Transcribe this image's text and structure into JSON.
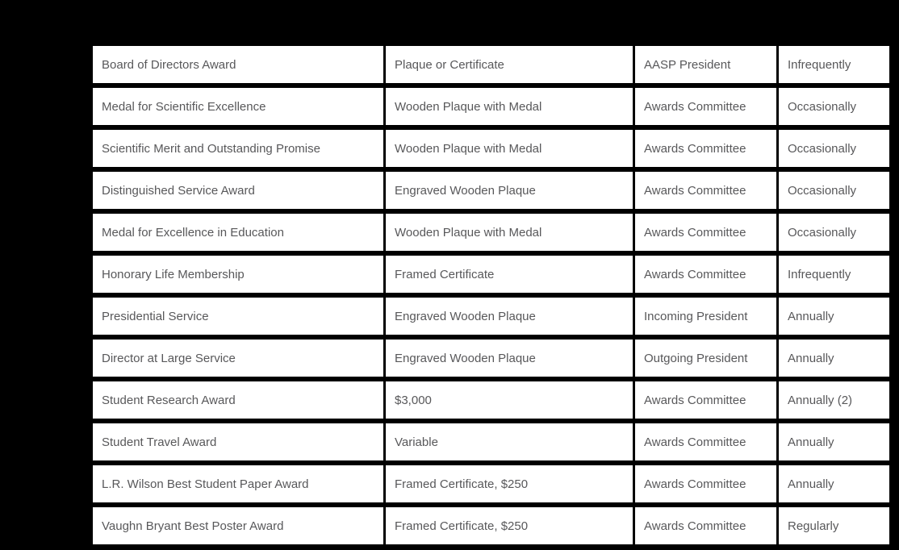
{
  "page": {
    "background_color": "#000000"
  },
  "table": {
    "description": "awards-table",
    "cell_background_color": "#ffffff",
    "text_color": "#58585a",
    "border_color": "#000000",
    "rows": [
      [
        "Board of Directors Award",
        "Plaque or Certificate",
        "AASP President",
        "Infrequently"
      ],
      [
        "Medal for Scientific Excellence",
        "Wooden Plaque with Medal",
        "Awards Committee",
        "Occasionally"
      ],
      [
        "Scientific Merit and Outstanding Promise",
        "Wooden Plaque with Medal",
        "Awards Committee",
        "Occasionally"
      ],
      [
        "Distinguished Service Award",
        "Engraved Wooden Plaque",
        "Awards Committee",
        "Occasionally"
      ],
      [
        "Medal for Excellence in Education",
        "Wooden Plaque with Medal",
        "Awards Committee",
        "Occasionally"
      ],
      [
        "Honorary Life Membership",
        "Framed Certificate",
        "Awards Committee",
        "Infrequently"
      ],
      [
        "Presidential Service",
        "Engraved Wooden Plaque",
        "Incoming President",
        "Annually"
      ],
      [
        "Director at Large Service",
        "Engraved Wooden Plaque",
        "Outgoing President",
        "Annually"
      ],
      [
        "Student Research Award",
        "$3,000",
        "Awards Committee",
        "Annually (2)"
      ],
      [
        "Student Travel Award",
        "Variable",
        "Awards Committee",
        "Annually"
      ],
      [
        "L.R. Wilson Best Student Paper Award",
        "Framed Certificate, $250",
        "Awards Committee",
        "Annually"
      ],
      [
        "Vaughn Bryant Best Poster Award",
        "Framed Certificate, $250",
        "Awards Committee",
        "Regularly"
      ]
    ]
  }
}
